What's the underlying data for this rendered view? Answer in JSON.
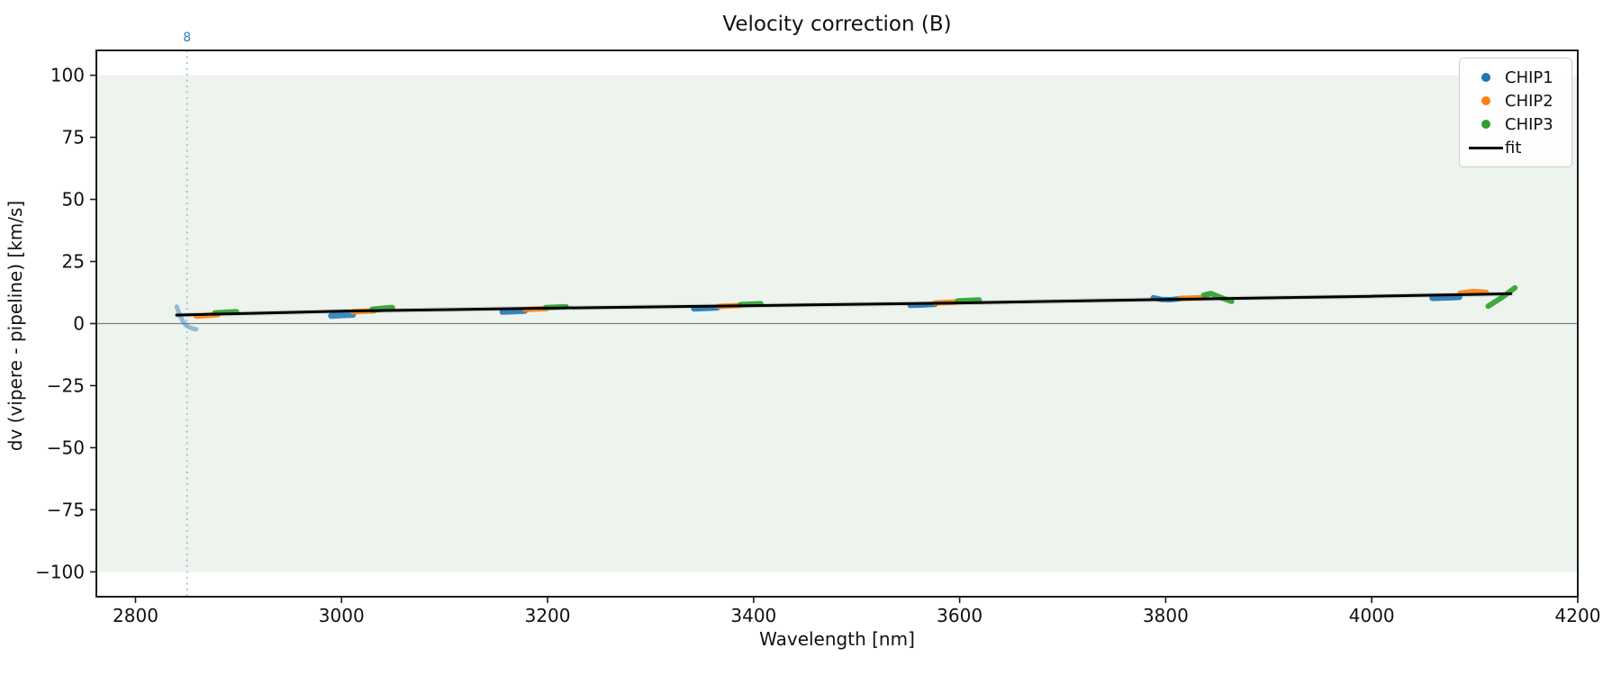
{
  "chart_data": {
    "type": "scatter",
    "title": "Velocity correction (B)",
    "xlabel": "Wavelength [nm]",
    "ylabel": "dv (vipere - pipeline) [km/s]",
    "xlim": [
      2762,
      4200
    ],
    "ylim": [
      -110,
      110
    ],
    "xticks": [
      2800,
      3000,
      3200,
      3400,
      3600,
      3800,
      4000,
      4200
    ],
    "yticks": [
      100,
      75,
      50,
      25,
      0,
      -25,
      -50,
      -75,
      -100
    ],
    "grid": false,
    "shaded_band": {
      "from": -100,
      "to": 100,
      "color": "#edf4ee"
    },
    "zero_line": {
      "y": 0,
      "color": "#7f7f7f"
    },
    "vline": {
      "x": 2850,
      "label": "8",
      "line_color": "#8fbcd9",
      "label_color": "#2e7ebc",
      "style": "dotted"
    },
    "legend": {
      "position": "top-right",
      "items": [
        {
          "label": "CHIP1",
          "color": "#1f77b4",
          "marker": "dot"
        },
        {
          "label": "CHIP2",
          "color": "#ff7f0e",
          "marker": "dot"
        },
        {
          "label": "CHIP3",
          "color": "#2ca02c",
          "marker": "dot"
        },
        {
          "label": "fit",
          "color": "#000000",
          "marker": "line"
        }
      ]
    },
    "fit_line": {
      "color": "#000000",
      "halo_color": "#b9b9b9",
      "points": [
        [
          2840,
          3.4
        ],
        [
          3000,
          5.0
        ],
        [
          3200,
          6.2
        ],
        [
          3400,
          7.2
        ],
        [
          3600,
          8.3
        ],
        [
          3800,
          9.7
        ],
        [
          4000,
          11.0
        ],
        [
          4135,
          12.0
        ]
      ]
    },
    "series": [
      {
        "name": "CHIP1",
        "color": "#1f77b4",
        "segments": [
          {
            "pts": [
              [
                2840,
                6.8
              ],
              [
                2842,
                4.5
              ],
              [
                2844,
                2.5
              ],
              [
                2846,
                0.9
              ],
              [
                2849,
                -0.6
              ],
              [
                2852,
                -1.5
              ],
              [
                2856,
                -2.1
              ],
              [
                2859,
                -2.3
              ]
            ],
            "w": 5,
            "op": 0.45
          },
          {
            "pts": [
              [
                2990,
                3.1
              ],
              [
                3000,
                3.4
              ],
              [
                3011,
                3.6
              ]
            ],
            "w": 7,
            "op": 0.85
          },
          {
            "pts": [
              [
                3156,
                4.6
              ],
              [
                3178,
                5.0
              ]
            ],
            "w": 6,
            "op": 0.9
          },
          {
            "pts": [
              [
                3342,
                5.9
              ],
              [
                3365,
                6.3
              ]
            ],
            "w": 6,
            "op": 0.9
          },
          {
            "pts": [
              [
                3552,
                7.3
              ],
              [
                3576,
                7.7
              ]
            ],
            "w": 6,
            "op": 0.9
          },
          {
            "pts": [
              [
                3788,
                10.4
              ],
              [
                3796,
                9.7
              ],
              [
                3805,
                9.6
              ],
              [
                3816,
                10.1
              ]
            ],
            "w": 6,
            "op": 0.9
          },
          {
            "pts": [
              [
                4059,
                10.3
              ],
              [
                4085,
                10.7
              ]
            ],
            "w": 7,
            "op": 0.9
          }
        ]
      },
      {
        "name": "CHIP2",
        "color": "#ff7f0e",
        "segments": [
          {
            "pts": [
              [
                2859,
                3.0
              ],
              [
                2880,
                3.6
              ]
            ],
            "w": 6,
            "op": 0.9
          },
          {
            "pts": [
              [
                3011,
                4.7
              ],
              [
                3032,
                5.1
              ]
            ],
            "w": 6,
            "op": 0.9
          },
          {
            "pts": [
              [
                3178,
                5.6
              ],
              [
                3199,
                6.0
              ]
            ],
            "w": 6,
            "op": 0.9
          },
          {
            "pts": [
              [
                3366,
                6.9
              ],
              [
                3387,
                7.3
              ]
            ],
            "w": 6,
            "op": 0.9
          },
          {
            "pts": [
              [
                3576,
                8.3
              ],
              [
                3597,
                8.7
              ]
            ],
            "w": 6,
            "op": 0.9
          },
          {
            "pts": [
              [
                3814,
                10.1
              ],
              [
                3840,
                10.5
              ]
            ],
            "w": 6,
            "op": 0.9
          },
          {
            "pts": [
              [
                4086,
                12.3
              ],
              [
                4099,
                12.9
              ],
              [
                4111,
                12.6
              ]
            ],
            "w": 6,
            "op": 0.9
          }
        ]
      },
      {
        "name": "CHIP3",
        "color": "#2ca02c",
        "segments": [
          {
            "pts": [
              [
                2877,
                4.3
              ],
              [
                2898,
                4.8
              ]
            ],
            "w": 6,
            "op": 0.9
          },
          {
            "pts": [
              [
                3030,
                5.6
              ],
              [
                3049,
                6.3
              ]
            ],
            "w": 7,
            "op": 0.9
          },
          {
            "pts": [
              [
                3198,
                6.4
              ],
              [
                3218,
                6.8
              ]
            ],
            "w": 6,
            "op": 0.9
          },
          {
            "pts": [
              [
                3387,
                7.6
              ],
              [
                3407,
                8.0
              ]
            ],
            "w": 6,
            "op": 0.9
          },
          {
            "pts": [
              [
                3598,
                9.1
              ],
              [
                3619,
                9.5
              ]
            ],
            "w": 6,
            "op": 0.9
          },
          {
            "pts": [
              [
                3837,
                11.5
              ],
              [
                3844,
                12.1
              ],
              [
                3853,
                10.6
              ],
              [
                3864,
                8.9
              ]
            ],
            "w": 6,
            "op": 0.9
          },
          {
            "pts": [
              [
                4113,
                7.0
              ],
              [
                4127,
                10.7
              ],
              [
                4139,
                14.4
              ]
            ],
            "w": 6,
            "op": 0.9
          }
        ]
      }
    ]
  }
}
